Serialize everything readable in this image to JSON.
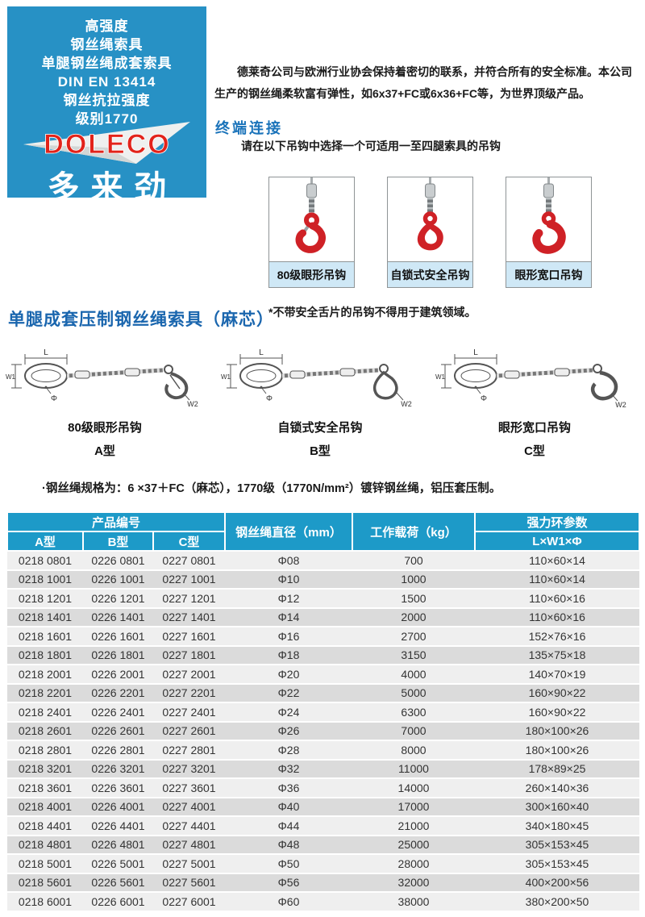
{
  "palette": {
    "brand_blue": "#2791c5",
    "table_header_teal": "#1d9ac8",
    "doleco_red": "#e2231a",
    "hook_red": "#cf2126",
    "heading_blue": "#1a73ba",
    "product_heading_blue": "#1a66ae",
    "caption_band_blue": "#cfe8f6",
    "row_light": "#efefef",
    "row_dark": "#dbdbdb"
  },
  "brand_panel": {
    "lines": [
      "高强度",
      "钢丝绳索具",
      "单腿钢丝绳成套索具",
      "DIN EN 13414",
      "钢丝抗拉强度",
      "级别1770"
    ],
    "logo_text": "DOLECO",
    "brand_cn": "多来劲"
  },
  "intro": {
    "text": "德莱奇公司与欧洲行业协会保持着密切的联系，并符合所有的安全标准。本公司生产的钢丝绳柔软富有弹性，如6x37+FC或6x36+FC等，为世界顶级产品。"
  },
  "terminal_section": {
    "heading": "终端连接",
    "instruction": "请在以下吊钩中选择一个可适用一至四腿索具的吊钩",
    "hooks": [
      {
        "label": "80级眼形吊钩"
      },
      {
        "label": "自锁式安全吊钩"
      },
      {
        "label": "眼形宽口吊钩"
      }
    ],
    "note": "*不带安全舌片的吊钩不得用于建筑领域。"
  },
  "product_section": {
    "heading": "单腿成套压制钢丝绳索具（麻芯）",
    "diagrams": [
      {
        "name": "80级眼形吊钩",
        "type": "A型"
      },
      {
        "name": "自锁式安全吊钩",
        "type": "B型"
      },
      {
        "name": "眼形宽口吊钩",
        "type": "C型"
      }
    ],
    "dim_labels": {
      "L": "L",
      "W1": "W1",
      "dia": "Φ",
      "W2": "W2"
    },
    "spec_note": "·钢丝绳规格为：6 ×37＋FC（麻芯），1770级（1770N/mm²）镀锌钢丝绳，铝压套压制。"
  },
  "table": {
    "header": {
      "product_code": "产品编号",
      "sub_codes": [
        "A型",
        "B型",
        "C型"
      ],
      "diameter": "钢丝绳直径（mm）",
      "load": "工作载荷（kg）",
      "ring_params": "强力环参数",
      "ring_sub": "L×W1×Φ"
    },
    "rows": [
      [
        "0218 0801",
        "0226 0801",
        "0227 0801",
        "Φ08",
        "700",
        "110×60×14"
      ],
      [
        "0218 1001",
        "0226 1001",
        "0227 1001",
        "Φ10",
        "1000",
        "110×60×14"
      ],
      [
        "0218 1201",
        "0226 1201",
        "0227 1201",
        "Φ12",
        "1500",
        "110×60×16"
      ],
      [
        "0218 1401",
        "0226 1401",
        "0227 1401",
        "Φ14",
        "2000",
        "110×60×16"
      ],
      [
        "0218 1601",
        "0226 1601",
        "0227 1601",
        "Φ16",
        "2700",
        "152×76×16"
      ],
      [
        "0218 1801",
        "0226 1801",
        "0227 1801",
        "Φ18",
        "3150",
        "135×75×18"
      ],
      [
        "0218 2001",
        "0226 2001",
        "0227 2001",
        "Φ20",
        "4000",
        "140×70×19"
      ],
      [
        "0218 2201",
        "0226 2201",
        "0227 2201",
        "Φ22",
        "5000",
        "160×90×22"
      ],
      [
        "0218 2401",
        "0226 2401",
        "0227 2401",
        "Φ24",
        "6300",
        "160×90×22"
      ],
      [
        "0218 2601",
        "0226 2601",
        "0227 2601",
        "Φ26",
        "7000",
        "180×100×26"
      ],
      [
        "0218 2801",
        "0226 2801",
        "0227 2801",
        "Φ28",
        "8000",
        "180×100×26"
      ],
      [
        "0218 3201",
        "0226 3201",
        "0227 3201",
        "Φ32",
        "11000",
        "178×89×25"
      ],
      [
        "0218 3601",
        "0226 3601",
        "0227 3601",
        "Φ36",
        "14000",
        "260×140×36"
      ],
      [
        "0218 4001",
        "0226 4001",
        "0227 4001",
        "Φ40",
        "17000",
        "300×160×40"
      ],
      [
        "0218 4401",
        "0226 4401",
        "0227 4401",
        "Φ44",
        "21000",
        "340×180×45"
      ],
      [
        "0218 4801",
        "0226 4801",
        "0227 4801",
        "Φ48",
        "25000",
        "305×153×45"
      ],
      [
        "0218 5001",
        "0226 5001",
        "0227 5001",
        "Φ50",
        "28000",
        "305×153×45"
      ],
      [
        "0218 5601",
        "0226 5601",
        "0227 5601",
        "Φ56",
        "32000",
        "400×200×56"
      ],
      [
        "0218 6001",
        "0226 6001",
        "0227 6001",
        "Φ60",
        "38000",
        "380×200×50"
      ]
    ]
  }
}
